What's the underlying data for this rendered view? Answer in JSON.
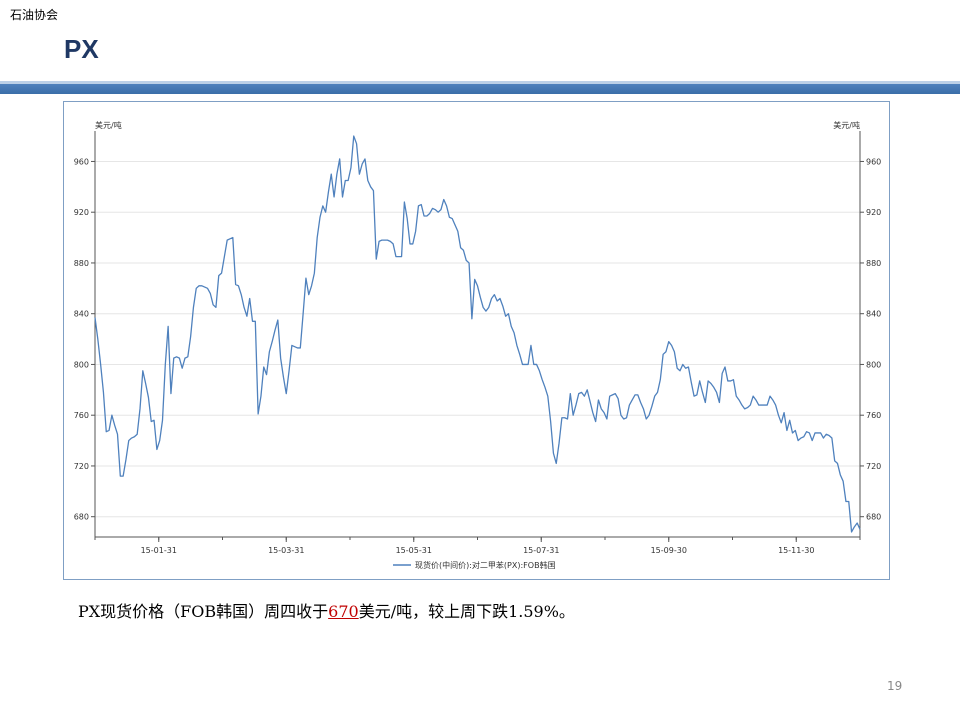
{
  "header": {
    "org": "石油协会",
    "title": "PX"
  },
  "caption": {
    "prefix": "PX现货价格（FOB韩国）周四收于",
    "value": "670",
    "suffix": "美元/吨，较上周下跌1.59%。"
  },
  "page_number": "19",
  "colors": {
    "line": "#4f81bd",
    "header_bar": "#4f81bd",
    "title": "#1f3864",
    "highlight": "#c00000"
  },
  "chart_data": {
    "type": "line",
    "title": "",
    "xlabel": "",
    "ylabel": "美元/吨",
    "ylabel_right": "美元/吨",
    "ylim": [
      664,
      984
    ],
    "yticks": [
      680,
      720,
      760,
      800,
      840,
      880,
      920,
      960
    ],
    "xticks": [
      "15-01-31",
      "15-03-31",
      "15-05-31",
      "15-07-31",
      "15-09-30",
      "15-11-30"
    ],
    "grid": true,
    "legend_position": "bottom",
    "series": [
      {
        "name": "现货价(中间价):对二甲苯(PX):FOB韩国",
        "values": [
          837,
          820,
          800,
          778,
          747,
          748,
          760,
          752,
          745,
          712,
          712,
          725,
          740,
          742,
          743,
          745,
          765,
          795,
          785,
          774,
          755,
          756,
          733,
          740,
          756,
          800,
          830,
          777,
          805,
          806,
          805,
          797,
          805,
          806,
          822,
          845,
          860,
          862,
          862,
          861,
          860,
          856,
          847,
          845,
          870,
          872,
          885,
          898,
          899,
          900,
          863,
          862,
          855,
          845,
          838,
          852,
          834,
          834,
          761,
          775,
          798,
          792,
          810,
          818,
          827,
          835,
          805,
          790,
          777,
          795,
          815,
          814,
          813,
          813,
          840,
          868,
          855,
          862,
          872,
          900,
          916,
          925,
          920,
          936,
          950,
          932,
          950,
          962,
          932,
          945,
          945,
          955,
          980,
          974,
          950,
          958,
          962,
          945,
          940,
          937,
          883,
          897,
          898,
          898,
          898,
          897,
          895,
          885,
          885,
          885,
          928,
          915,
          895,
          895,
          905,
          925,
          926,
          917,
          917,
          919,
          923,
          922,
          920,
          922,
          930,
          925,
          916,
          915,
          910,
          905,
          892,
          890,
          882,
          880,
          836,
          867,
          862,
          853,
          845,
          842,
          845,
          852,
          855,
          850,
          852,
          846,
          838,
          840,
          830,
          825,
          815,
          808,
          800,
          800,
          800,
          815,
          800,
          800,
          795,
          788,
          782,
          775,
          755,
          730,
          722,
          738,
          758,
          758,
          757,
          777,
          760,
          768,
          777,
          778,
          775,
          780,
          771,
          762,
          755,
          772,
          765,
          762,
          757,
          775,
          776,
          777,
          773,
          760,
          757,
          758,
          768,
          772,
          776,
          776,
          770,
          765,
          757,
          760,
          767,
          775,
          778,
          788,
          808,
          810,
          818,
          815,
          810,
          797,
          795,
          800,
          797,
          798,
          786,
          775,
          776,
          787,
          778,
          770,
          787,
          785,
          782,
          778,
          770,
          793,
          798,
          787,
          787,
          788,
          775,
          772,
          768,
          765,
          766,
          768,
          775,
          772,
          768,
          768,
          768,
          768,
          775,
          772,
          768,
          760,
          754,
          762,
          748,
          756,
          746,
          748,
          740,
          742,
          743,
          747,
          746,
          740,
          746,
          746,
          746,
          742,
          745,
          744,
          742,
          724,
          722,
          713,
          708,
          692,
          692,
          668,
          672,
          675,
          670
        ]
      }
    ]
  }
}
